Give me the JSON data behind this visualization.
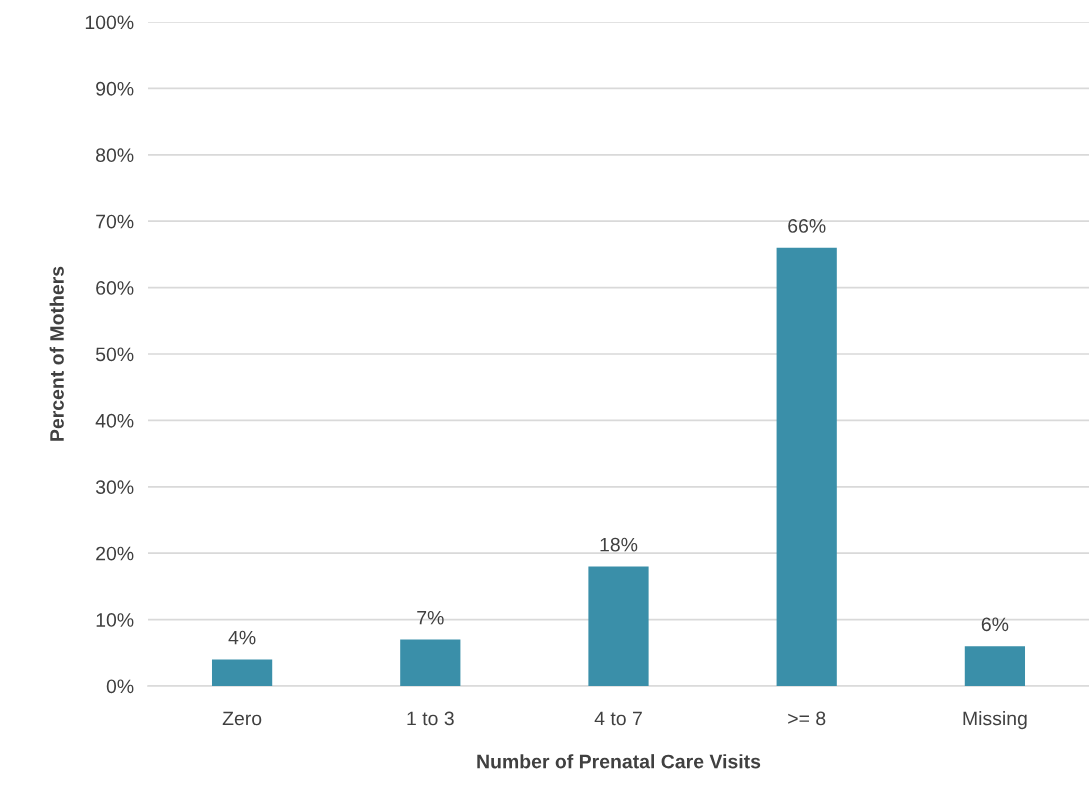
{
  "chart_data": {
    "type": "bar",
    "xlabel": "Number of Prenatal Care Visits",
    "ylabel": "Percent of Mothers",
    "categories": [
      "Zero",
      "1 to 3",
      "4 to 7",
      ">= 8",
      "Missing"
    ],
    "values": [
      4,
      7,
      18,
      66,
      6
    ],
    "color": "#3a8fa9",
    "value_labels": [
      "4%",
      "7%",
      "18%",
      "66%",
      "6%"
    ],
    "ylim": [
      0,
      100
    ],
    "yticks": [
      {
        "value": 0,
        "label": "0%"
      },
      {
        "value": 10,
        "label": "10%"
      },
      {
        "value": 20,
        "label": "20%"
      },
      {
        "value": 30,
        "label": "30%"
      },
      {
        "value": 40,
        "label": "40%"
      },
      {
        "value": 50,
        "label": "50%"
      },
      {
        "value": 60,
        "label": "60%"
      },
      {
        "value": 70,
        "label": "70%"
      },
      {
        "value": 80,
        "label": "80%"
      },
      {
        "value": 90,
        "label": "90%"
      },
      {
        "value": 100,
        "label": "100%"
      }
    ],
    "grid": "y",
    "legend": false
  }
}
